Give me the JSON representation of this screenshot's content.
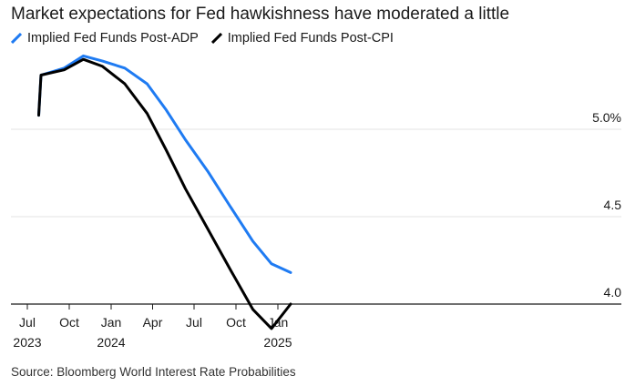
{
  "title": "Market expectations for Fed hawkishness have moderated a little",
  "source": "Source: Bloomberg World Interest Rate Probabilities",
  "chart_data": {
    "type": "line",
    "title": "Market expectations for Fed hawkishness have moderated a little",
    "ylim": [
      3.9,
      5.75
    ],
    "yticks": [
      4.0,
      4.5,
      5.0
    ],
    "ytick_labels": [
      "4.0",
      "4.5",
      "5.0%"
    ],
    "xticks": [
      {
        "x": "2023-07",
        "label": "Jul",
        "year": "2023"
      },
      {
        "x": "2023-10",
        "label": "Oct",
        "year": ""
      },
      {
        "x": "2024-01",
        "label": "Jan",
        "year": "2024"
      },
      {
        "x": "2024-04",
        "label": "Apr",
        "year": ""
      },
      {
        "x": "2024-07",
        "label": "Jul",
        "year": ""
      },
      {
        "x": "2024-10",
        "label": "Oct",
        "year": ""
      },
      {
        "x": "2025-01",
        "label": "Jan",
        "year": "2025"
      }
    ],
    "grid": true,
    "legend_position": "top-left",
    "series": [
      {
        "name": "Implied Fed Funds Post-ADP",
        "color": "#1f7bf2",
        "points": [
          [
            "2023-07-26",
            5.08
          ],
          [
            "2023-07-31",
            5.31
          ],
          [
            "2023-09-20",
            5.35
          ],
          [
            "2023-11-01",
            5.42
          ],
          [
            "2023-12-13",
            5.39
          ],
          [
            "2024-01-31",
            5.35
          ],
          [
            "2024-03-20",
            5.26
          ],
          [
            "2024-05-01",
            5.11
          ],
          [
            "2024-06-12",
            4.94
          ],
          [
            "2024-07-31",
            4.76
          ],
          [
            "2024-09-18",
            4.56
          ],
          [
            "2024-11-07",
            4.36
          ],
          [
            "2024-12-18",
            4.23
          ],
          [
            "2025-01-29",
            4.18
          ]
        ]
      },
      {
        "name": "Implied Fed Funds Post-CPI",
        "color": "#000000",
        "points": [
          [
            "2023-07-26",
            5.08
          ],
          [
            "2023-07-31",
            5.31
          ],
          [
            "2023-09-20",
            5.34
          ],
          [
            "2023-11-01",
            5.4
          ],
          [
            "2023-12-13",
            5.36
          ],
          [
            "2024-01-31",
            5.26
          ],
          [
            "2024-03-20",
            5.09
          ],
          [
            "2024-05-01",
            4.88
          ],
          [
            "2024-06-12",
            4.66
          ],
          [
            "2024-07-31",
            4.43
          ],
          [
            "2024-09-18",
            4.2
          ],
          [
            "2024-11-07",
            3.97
          ],
          [
            "2024-12-18",
            3.86
          ],
          [
            "2025-01-29",
            4.0
          ]
        ]
      }
    ]
  }
}
